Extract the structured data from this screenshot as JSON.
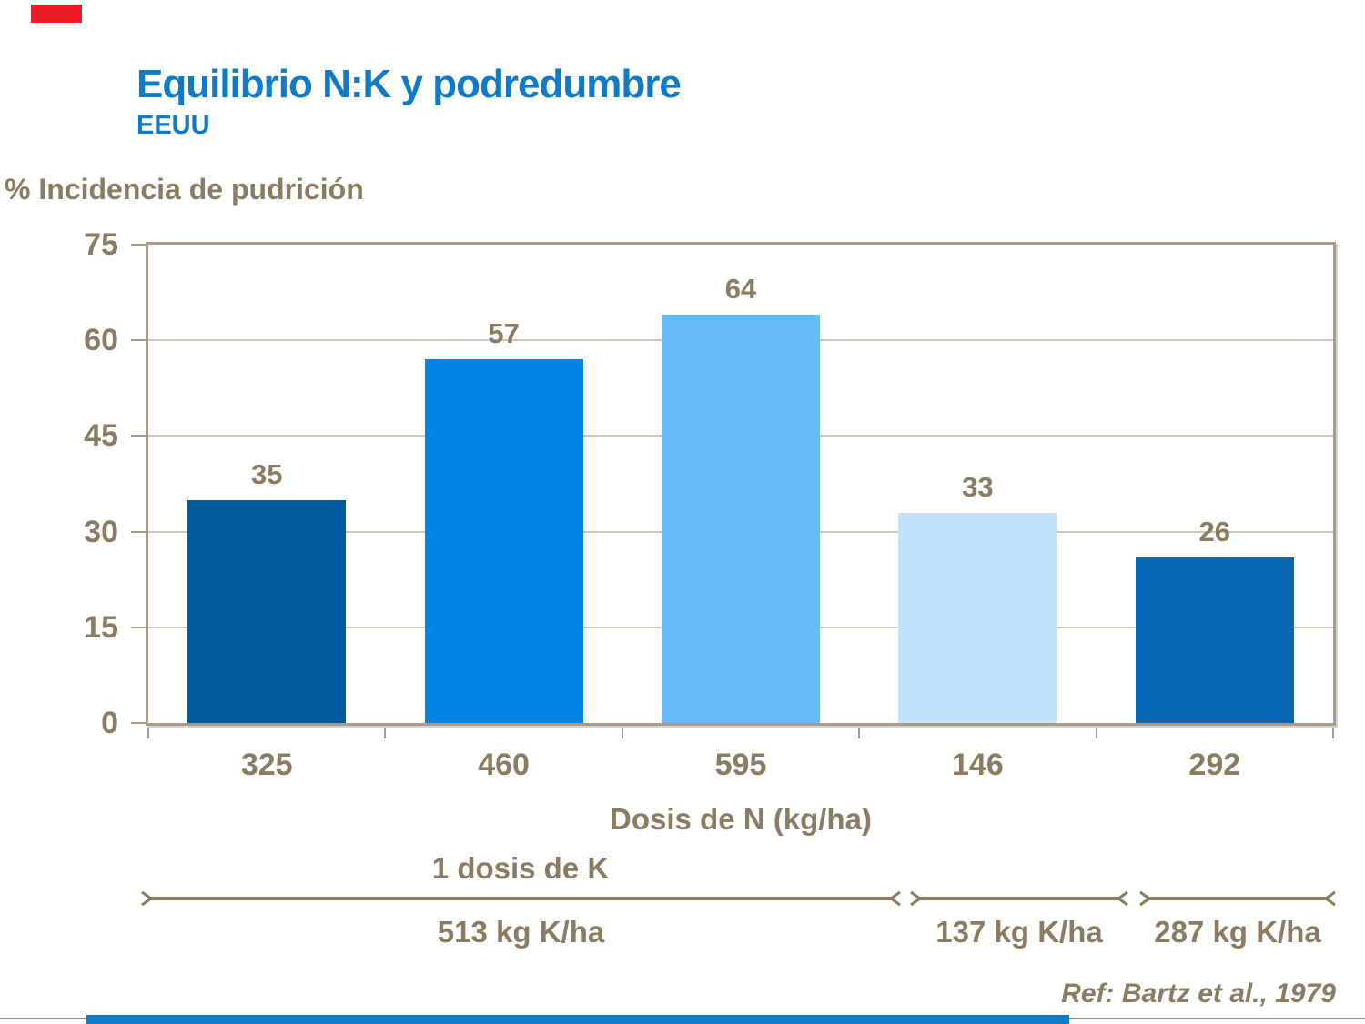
{
  "brand": {
    "accent_red": "#ED1C24",
    "accent_blue": "#0E7AC8",
    "text_brown": "#8B7B62",
    "axis_frame": "#A79B8B",
    "gridline": "#CDC5B9"
  },
  "header": {
    "title": "Equilibrio N:K y podredumbre",
    "subtitle": "EEUU"
  },
  "chart_data": {
    "type": "bar",
    "title": "",
    "ylabel": "% Incidencia de pudrición",
    "xlabel": "Dosis de N (kg/ha)",
    "categories": [
      "325",
      "460",
      "595",
      "146",
      "292"
    ],
    "values": [
      35,
      57,
      64,
      33,
      26
    ],
    "bar_colors": [
      "#02599B",
      "#0284E4",
      "#66BCF9",
      "#C2E1FA",
      "#0769B5"
    ],
    "ylim": [
      0,
      75
    ],
    "yticks": [
      0,
      15,
      30,
      45,
      60,
      75
    ],
    "grid": true,
    "legend_position": "none",
    "value_labels_shown": true
  },
  "annotations": {
    "k_dose_title": "1 dosis de K",
    "segments": [
      {
        "label": "513 kg K/ha",
        "categories_spanned": [
          "325",
          "460",
          "595"
        ]
      },
      {
        "label": "137 kg K/ha",
        "categories_spanned": [
          "146"
        ]
      },
      {
        "label": "287 kg K/ha",
        "categories_spanned": [
          "292"
        ]
      }
    ]
  },
  "footer": {
    "reference": "Ref: Bartz et al., 1979"
  }
}
